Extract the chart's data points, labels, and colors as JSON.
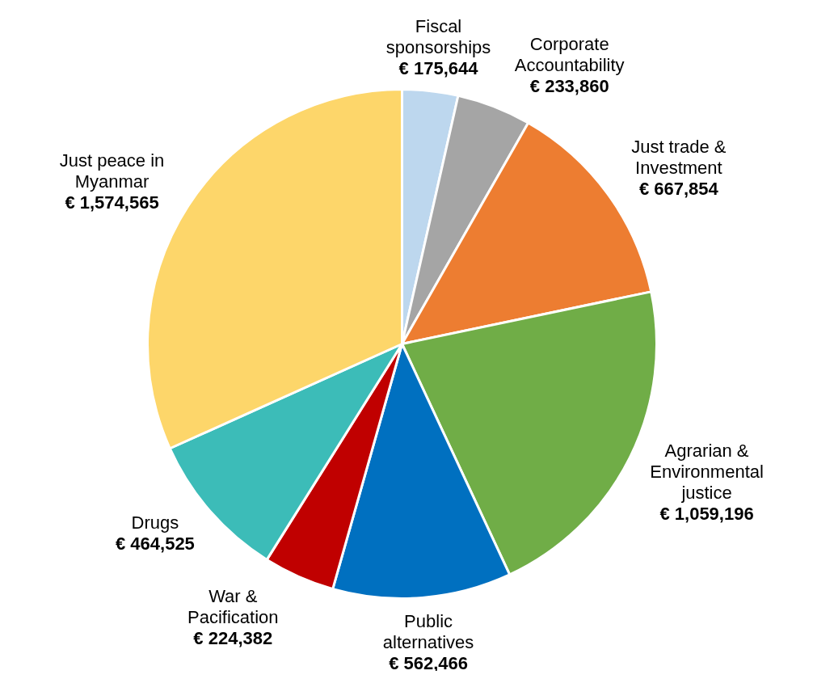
{
  "chart_data": {
    "type": "pie",
    "categories": [
      "Fiscal sponsorships",
      "Corporate Accountability",
      "Just trade & Investment",
      "Agrarian & Environmental justice",
      "Public alternatives",
      "War & Pacification",
      "Drugs",
      "Just peace in Myanmar"
    ],
    "values": [
      175644,
      233860,
      667854,
      1059196,
      562466,
      224382,
      464525,
      1574565
    ],
    "colors": [
      "#bdd7ee",
      "#a5a5a5",
      "#ed7d31",
      "#70ad47",
      "#0070c0",
      "#c00000",
      "#3cbcb8",
      "#fdd66a"
    ],
    "value_labels": [
      "€ 175,644",
      "€ 233,860",
      "€ 667,854",
      "€ 1,059,196",
      "€ 562,466",
      "€ 224,382",
      "€ 464,525",
      "€ 1,574,565"
    ],
    "legend": false
  }
}
